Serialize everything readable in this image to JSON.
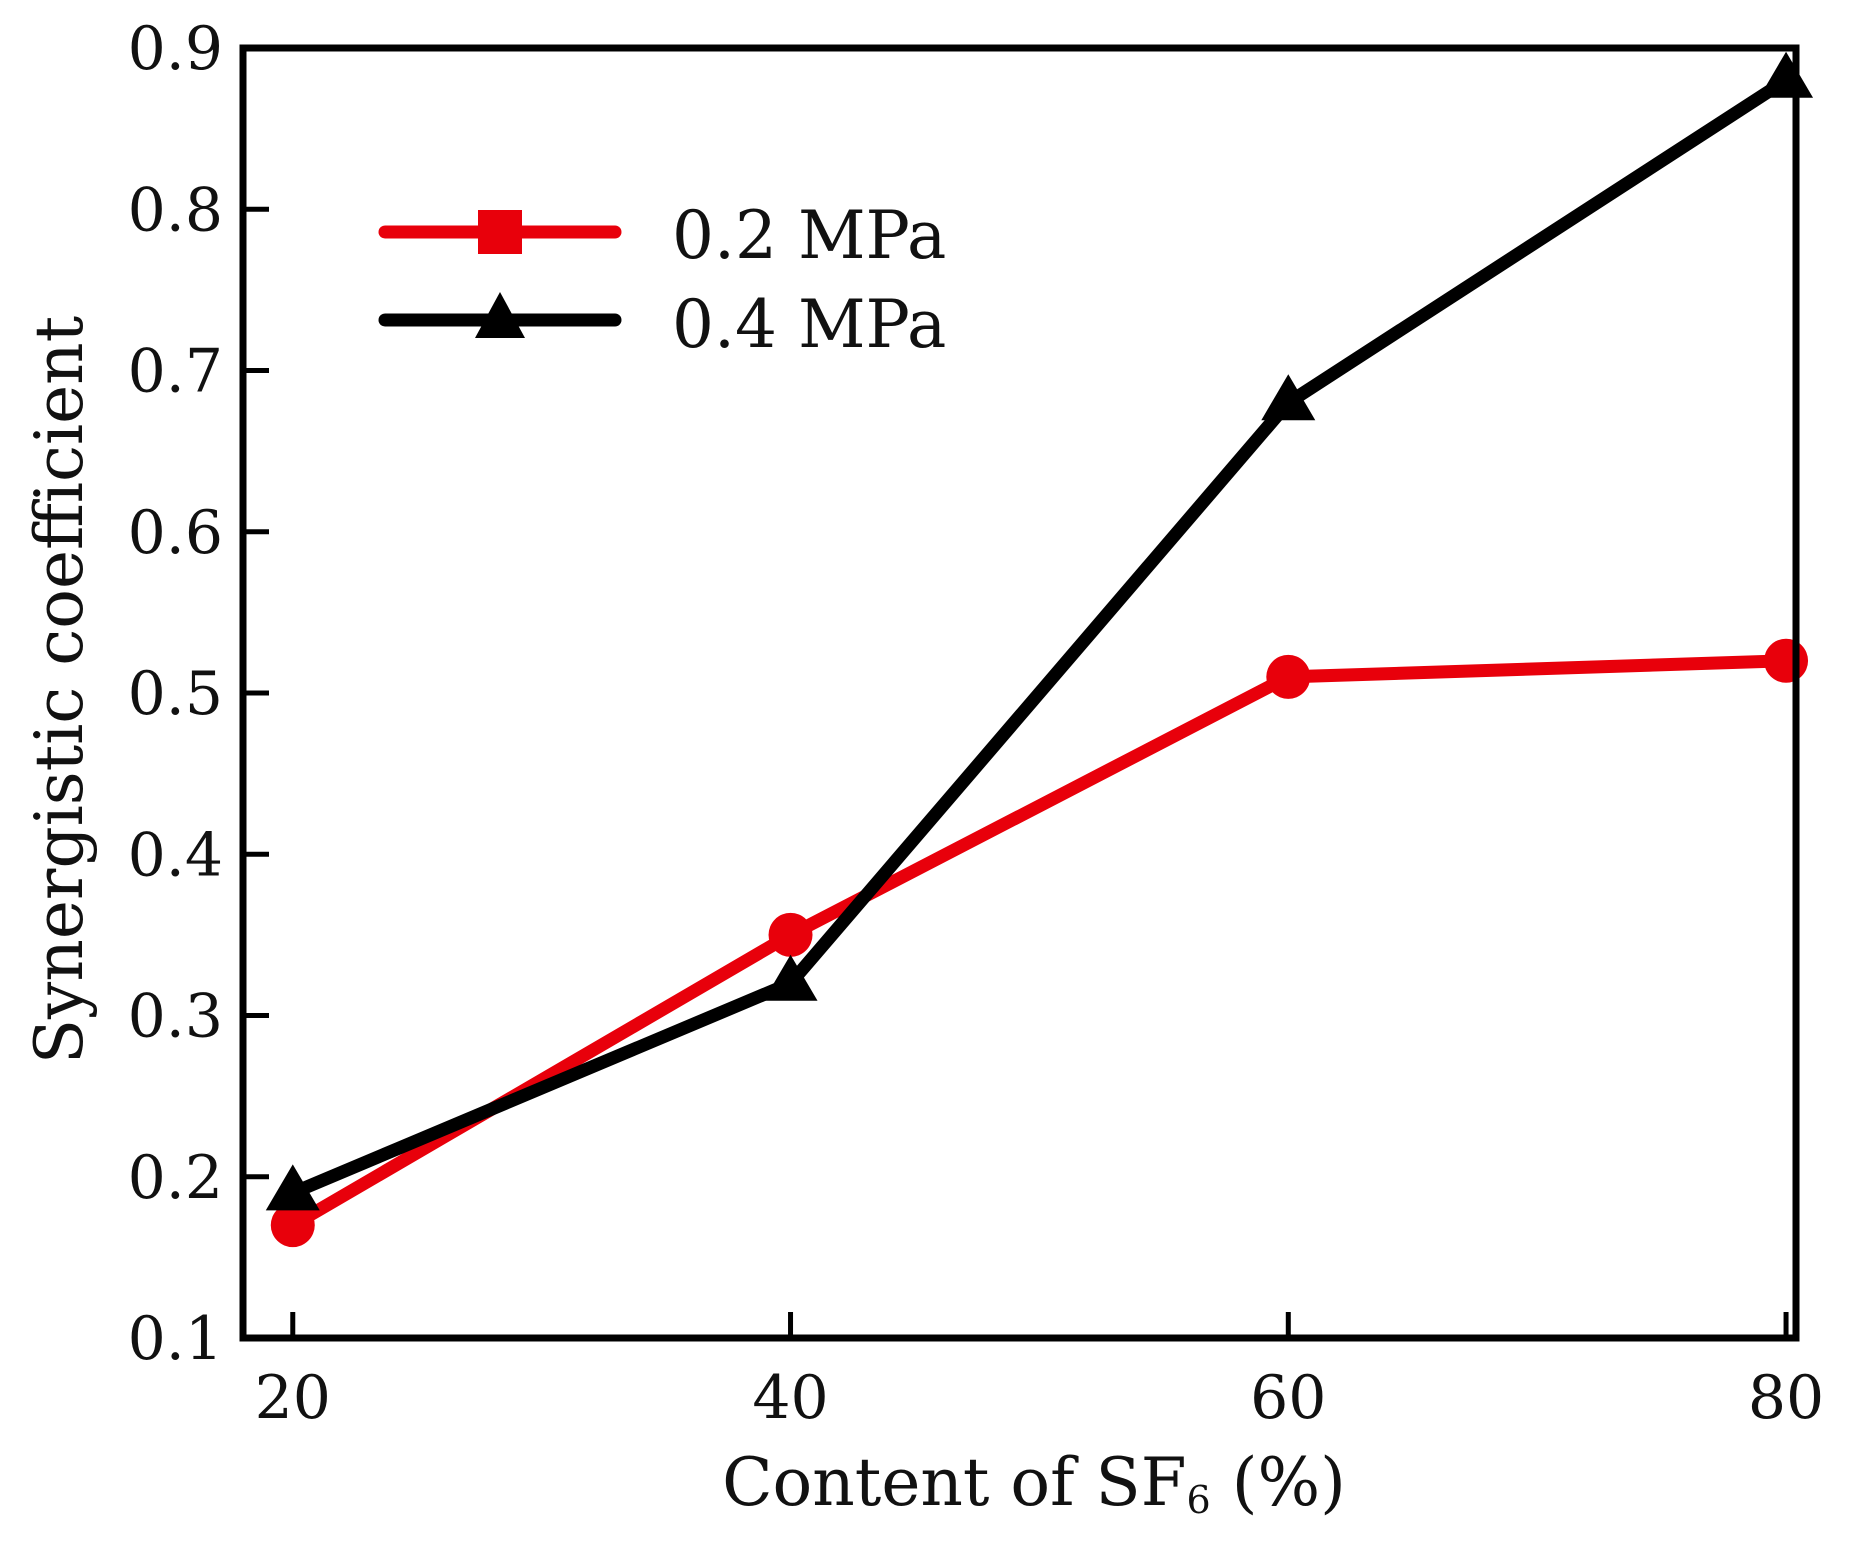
{
  "chart_data": {
    "type": "line",
    "title": "",
    "xlabel": "Content of SF",
    "xlabel_subscript": "6",
    "xlabel_suffix": " (%)",
    "ylabel": "Synergistic coefficient",
    "x": [
      20,
      40,
      60,
      80
    ],
    "x_tick_labels": [
      "20",
      "40",
      "60",
      "80"
    ],
    "y_tick_labels": [
      "0.1",
      "0.2",
      "0.3",
      "0.4",
      "0.5",
      "0.6",
      "0.7",
      "0.8",
      "0.9"
    ],
    "xlim": [
      18,
      80.4
    ],
    "ylim": [
      0.1,
      0.9
    ],
    "legend_position": "upper-left",
    "series": [
      {
        "name": "0.2 MPa",
        "marker": "circle",
        "legend_marker": "square",
        "color": "#e8000b",
        "values": [
          0.17,
          0.35,
          0.51,
          0.52
        ]
      },
      {
        "name": "0.4 MPa",
        "marker": "triangle",
        "legend_marker": "triangle",
        "color": "#000000",
        "values": [
          0.19,
          0.32,
          0.68,
          0.88
        ]
      }
    ]
  }
}
